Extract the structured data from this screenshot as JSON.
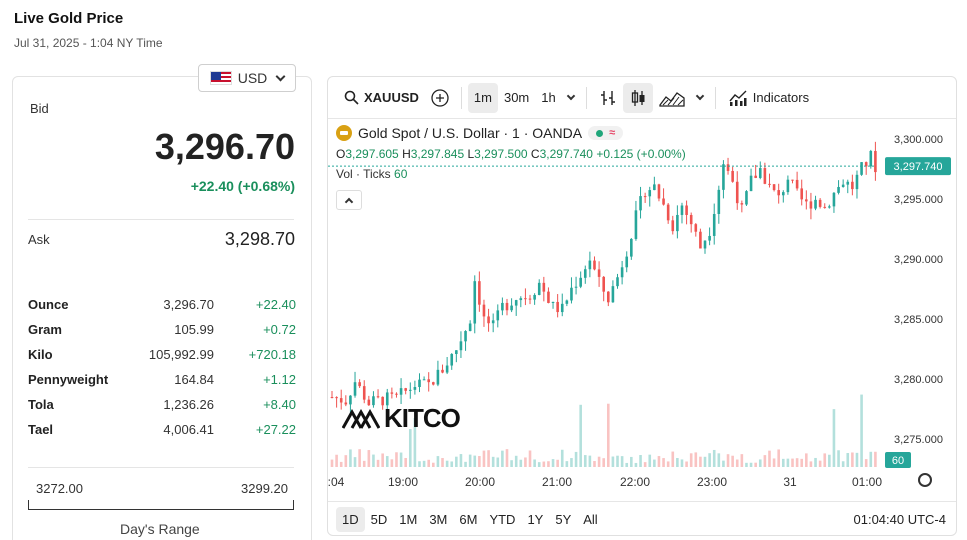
{
  "header": {
    "title": "Live Gold Price",
    "subtitle": "Jul 31, 2025 - 1:04 NY Time"
  },
  "currency": {
    "selected": "USD",
    "flag_icon": "us-flag-icon"
  },
  "quote": {
    "bid_label": "Bid",
    "bid": "3,296.70",
    "change": "+22.40 (+0.68%)",
    "ask_label": "Ask",
    "ask": "3,298.70"
  },
  "units": [
    {
      "name": "Ounce",
      "price": "3,296.70",
      "change": "+22.40"
    },
    {
      "name": "Gram",
      "price": "105.99",
      "change": "+0.72"
    },
    {
      "name": "Kilo",
      "price": "105,992.99",
      "change": "+720.18"
    },
    {
      "name": "Pennyweight",
      "price": "164.84",
      "change": "+1.12"
    },
    {
      "name": "Tola",
      "price": "1,236.26",
      "change": "+8.40"
    },
    {
      "name": "Tael",
      "price": "4,006.41",
      "change": "+27.22"
    }
  ],
  "days_range": {
    "low": "3272.00",
    "high": "3299.20",
    "label": "Day's Range"
  },
  "toolbar": {
    "symbol": "XAUUSD",
    "intervals": [
      "1m",
      "30m",
      "1h"
    ],
    "selected_interval": "1m",
    "indicators_label": "Indicators"
  },
  "legend": {
    "title": "Gold Spot / U.S. Dollar · 1 · OANDA",
    "open_label": "O",
    "open": "3,297.605",
    "high_label": "H",
    "high": "3,297.845",
    "low_label": "L",
    "low": "3,297.500",
    "close_label": "C",
    "close": "3,297.740",
    "change": "+0.125 (+0.00%)",
    "vol_label": "Vol · Ticks",
    "vol_value": "60"
  },
  "logo_text": "KITCO",
  "chart_data": {
    "type": "candlestick",
    "x_ticks": [
      ":04",
      "19:00",
      "20:00",
      "21:00",
      "22:00",
      "23:00",
      "31",
      "01:00"
    ],
    "y_ticks": [
      "3,300.000",
      "3,295.000",
      "3,290.000",
      "3,285.000",
      "3,280.000",
      "3,275.000"
    ],
    "ylim": [
      3273,
      3300
    ],
    "last_price": "3,297.740",
    "last_volume": "60",
    "close_path": [
      [
        0,
        3278.5
      ],
      [
        3,
        3278.2
      ],
      [
        5,
        3279.8
      ],
      [
        8,
        3278.0
      ],
      [
        11,
        3278.3
      ],
      [
        14,
        3278.4
      ],
      [
        18,
        3279.5
      ],
      [
        21,
        3279.5
      ],
      [
        24,
        3280.8
      ],
      [
        27,
        3282.5
      ],
      [
        30,
        3285.0
      ],
      [
        31,
        3288.3
      ],
      [
        33,
        3285.0
      ],
      [
        35,
        3284.3
      ],
      [
        37,
        3286.0
      ],
      [
        40,
        3286.8
      ],
      [
        43,
        3287.0
      ],
      [
        45,
        3288.0
      ],
      [
        48,
        3286.0
      ],
      [
        50,
        3285.8
      ],
      [
        52,
        3287.5
      ],
      [
        54,
        3288.7
      ],
      [
        56,
        3290.0
      ],
      [
        58,
        3288.0
      ],
      [
        60,
        3286.7
      ],
      [
        62,
        3288.5
      ],
      [
        64,
        3290.8
      ],
      [
        66,
        3293.5
      ],
      [
        68,
        3295.8
      ],
      [
        70,
        3296.0
      ],
      [
        72,
        3294.5
      ],
      [
        74,
        3292.8
      ],
      [
        76,
        3294.5
      ],
      [
        78,
        3293.0
      ],
      [
        80,
        3291.0
      ],
      [
        82,
        3292.5
      ],
      [
        84,
        3296.0
      ],
      [
        85,
        3298.0
      ],
      [
        87,
        3296.5
      ],
      [
        89,
        3294.0
      ],
      [
        91,
        3296.5
      ],
      [
        93,
        3297.5
      ],
      [
        95,
        3296.0
      ],
      [
        97,
        3295.0
      ],
      [
        99,
        3296.8
      ],
      [
        101,
        3295.3
      ],
      [
        103,
        3294.5
      ],
      [
        105,
        3295.0
      ],
      [
        107,
        3294.3
      ],
      [
        109,
        3295.5
      ],
      [
        111,
        3296.5
      ],
      [
        113,
        3296.0
      ],
      [
        115,
        3297.5
      ],
      [
        117,
        3298.5
      ],
      [
        118,
        3297.7
      ]
    ]
  },
  "bottom": {
    "ranges": [
      "1D",
      "5D",
      "1M",
      "3M",
      "6M",
      "YTD",
      "1Y",
      "5Y",
      "All"
    ],
    "selected": "1D",
    "clock": "01:04:40 UTC-4"
  },
  "colors": {
    "up": "#26a69a",
    "down": "#ef5350",
    "accent": "#1a8f5c",
    "gold": "#d9a114"
  }
}
